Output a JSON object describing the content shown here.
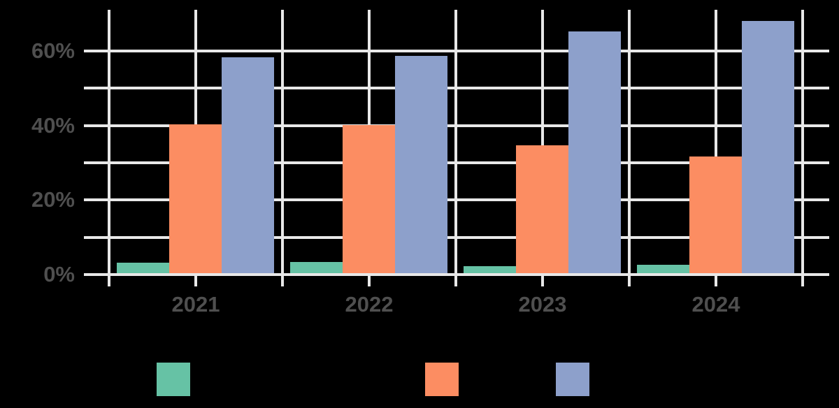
{
  "colors": {
    "background": "#000000",
    "grid": "#e8e8e8",
    "tick_text": "#4f4f4f",
    "legend_text": "#000000"
  },
  "chart_data": {
    "type": "bar",
    "title": "",
    "categories": [
      "2021",
      "2022",
      "2023",
      "2024"
    ],
    "series": [
      {
        "key": "green",
        "label": "",
        "color": "#66c2a5",
        "values": [
          2.9,
          3.0,
          1.8,
          2.3
        ]
      },
      {
        "key": "orange",
        "label": "",
        "color": "#fc8d62",
        "values": [
          39.9,
          39.8,
          34.3,
          31.4
        ]
      },
      {
        "key": "blue",
        "label": "",
        "color": "#8da0cb",
        "values": [
          57.9,
          58.3,
          64.9,
          67.6
        ]
      }
    ],
    "y_axis": {
      "unit": "%",
      "min": 0,
      "max": 71,
      "grid_every": 10,
      "tick_labels": [
        {
          "value": 0,
          "label": "0%"
        },
        {
          "value": 20,
          "label": "20%"
        },
        {
          "value": 40,
          "label": "40%"
        },
        {
          "value": 60,
          "label": "60%"
        }
      ]
    },
    "x_axis": {
      "tick_labels": [
        "2021",
        "2022",
        "2023",
        "2024"
      ]
    },
    "grid": true,
    "legend": {
      "position": "bottom",
      "labels_visible": false,
      "items": [
        {
          "key": "green",
          "label": "",
          "color": "#66c2a5"
        },
        {
          "key": "orange",
          "label": "",
          "color": "#fc8d62"
        },
        {
          "key": "blue",
          "label": "",
          "color": "#8da0cb"
        }
      ]
    }
  }
}
